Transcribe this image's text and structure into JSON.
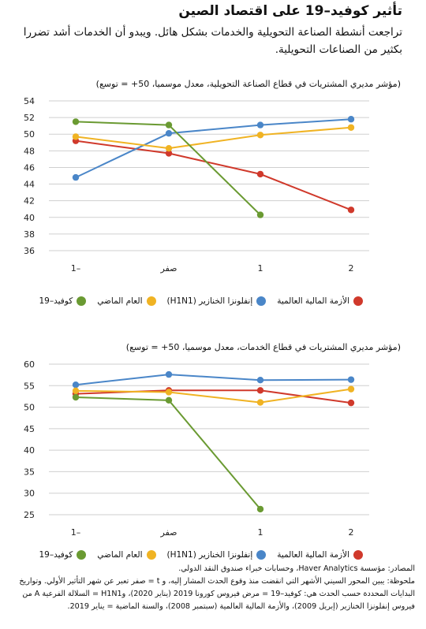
{
  "title": "تأثير كوفيد–19 على اقتصاد الصين",
  "subtitle": "تراجعت أنشطة الصناعة التحويلية والخدمات بشكل هائل. ويبدو أن الخدمات أشد تضررا بكثير من الصناعات التحويلية.",
  "legend": [
    {
      "name": "الأزمة المالية العالمية",
      "color": "#d0392b"
    },
    {
      "name": "إنفلونزا الخنازير (H1N1)",
      "color": "#4a86c8"
    },
    {
      "name": "العام الماضي",
      "color": "#f0b323"
    },
    {
      "name": "كوفيد–19",
      "color": "#6a9a32"
    }
  ],
  "chart_data": [
    {
      "type": "line",
      "title": "(مؤشر مديري المشتريات في قطاع الصناعة التحويلية، معدل موسميا، 50+ = توسع)",
      "categories": [
        "–1",
        "صفر",
        "1",
        "2"
      ],
      "ylim": [
        36,
        54
      ],
      "yticks": [
        36,
        38,
        40,
        42,
        44,
        46,
        48,
        50,
        52,
        54
      ],
      "grid": true,
      "series": [
        {
          "name": "الأزمة المالية العالمية",
          "color": "#d0392b",
          "values": [
            49.2,
            47.7,
            45.2,
            40.9
          ]
        },
        {
          "name": "إنفلونزا الخنازير (H1N1)",
          "color": "#4a86c8",
          "values": [
            44.8,
            50.1,
            51.1,
            51.8
          ]
        },
        {
          "name": "العام الماضي",
          "color": "#f0b323",
          "values": [
            49.7,
            48.3,
            49.9,
            50.8
          ]
        },
        {
          "name": "كوفيد–19",
          "color": "#6a9a32",
          "values": [
            51.5,
            51.1,
            40.3,
            null
          ]
        }
      ]
    },
    {
      "type": "line",
      "title": "(مؤشر مديري المشتريات في قطاع الخدمات، معدل موسميا، 50+ = توسع)",
      "categories": [
        "–1",
        "صفر",
        "1",
        "2"
      ],
      "ylim": [
        25,
        60
      ],
      "yticks": [
        25,
        30,
        35,
        40,
        45,
        50,
        55,
        60
      ],
      "grid": true,
      "series": [
        {
          "name": "الأزمة المالية العالمية",
          "color": "#d0392b",
          "values": [
            53.1,
            53.9,
            53.9,
            51.0
          ]
        },
        {
          "name": "إنفلونزا الخنازير (H1N1)",
          "color": "#4a86c8",
          "values": [
            55.2,
            57.6,
            56.3,
            56.4
          ]
        },
        {
          "name": "العام الماضي",
          "color": "#f0b323",
          "values": [
            53.8,
            53.5,
            51.1,
            54.2
          ]
        },
        {
          "name": "كوفيد–19",
          "color": "#6a9a32",
          "values": [
            52.3,
            51.6,
            26.3,
            null
          ]
        }
      ]
    }
  ],
  "footer": {
    "sources": "المصادر: مؤسسة Haver Analytics، وحسابات خبراء صندوق النقد الدولي.",
    "note": "ملحوظة: يبين المحور السيني الأشهر التي انقضت منذ وقوع الحدث المشار إليه، و t = صفر تعبر عن شهر التأثير الأولي. وتواريخ البدايات المحددة حسب الحدث هي: كوفيد–19 = مرض فيروس كورونا 2019 (يناير 2020)، وH1N1 = السلالة الفرعية A من فيروس إنفلونزا الخنازير (إبريل 2009)، والأزمة المالية العالمية (سبتمبر 2008)، والسنة الماضية = يناير 2019."
  }
}
